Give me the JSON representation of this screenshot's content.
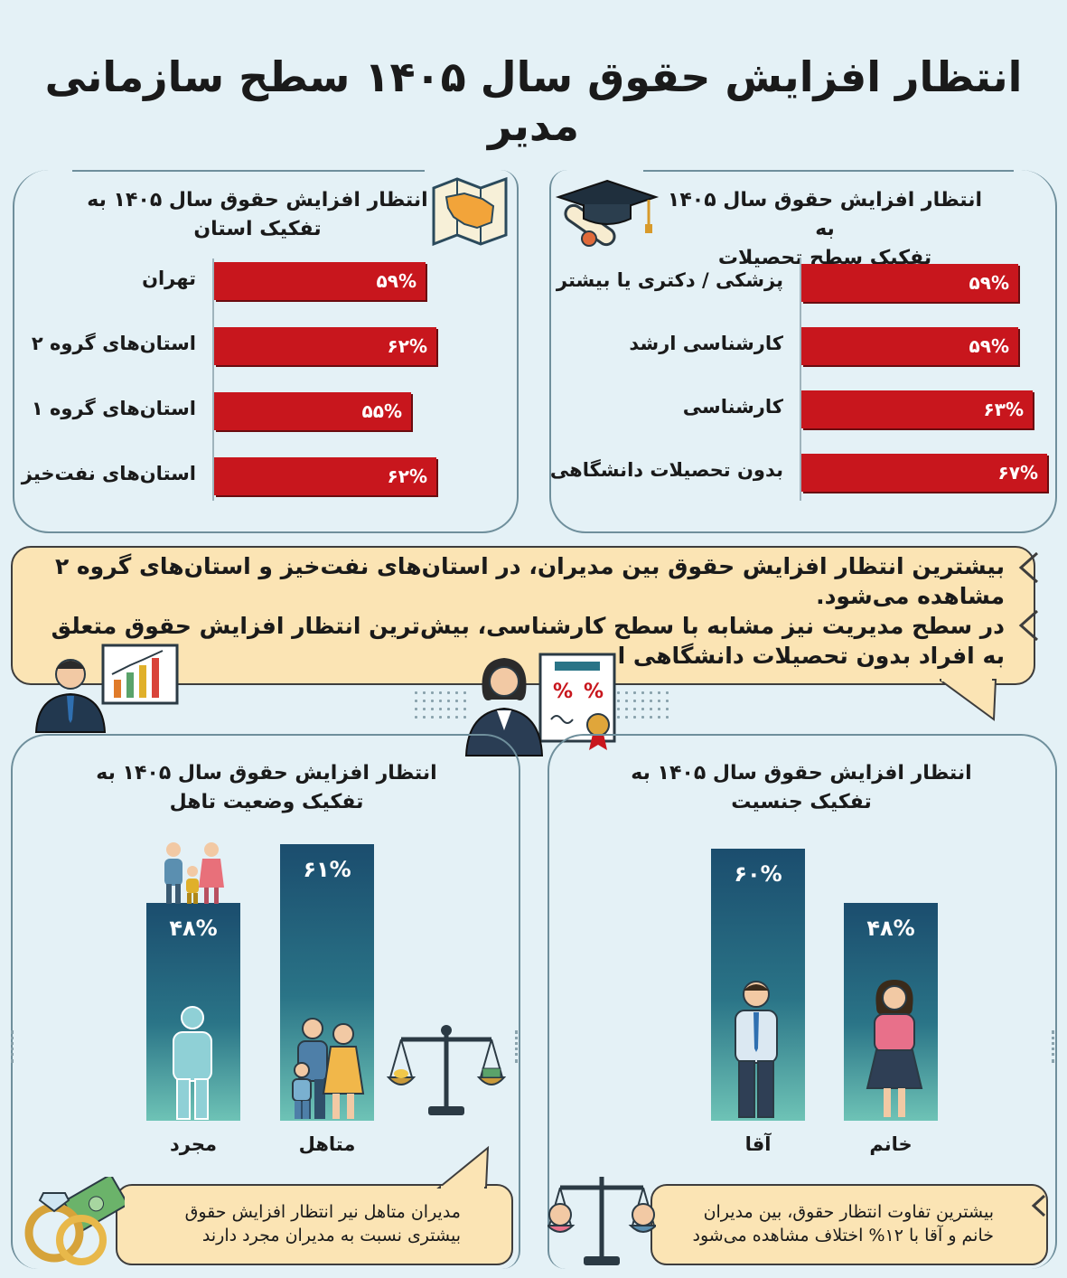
{
  "title": "انتظار افزایش حقوق سال ۱۴۰۵ سطح سازمانی مدیر",
  "panels": {
    "province": {
      "title_line1": "انتظار افزایش حقوق سال ۱۴۰۵ به",
      "title_line2": "تفکیک استان",
      "icon": "iran-map-icon"
    },
    "education": {
      "title_line1": "انتظار افزایش حقوق سال ۱۴۰۵ به",
      "title_line2": "تفکیک سطح تحصیلات",
      "icon": "graduation-cap-icon"
    },
    "marital": {
      "title_line1": "انتظار افزایش حقوق سال ۱۴۰۵ به",
      "title_line2": "تفکیک وضعیت تاهل"
    },
    "gender": {
      "title_line1": "انتظار افزایش حقوق سال ۱۴۰۵ به",
      "title_line2": "تفکیک جنسیت"
    }
  },
  "callout": {
    "para1": "بیشترین انتظار افزایش حقوق بین مدیران، در استان‌های نفت‌خیز و استان‌های گروه ۲ مشاهده می‌شود.",
    "para2": "در سطح مدیریت نیز مشابه با سطح کارشناسی، بیش‌ترین انتظار افزایش حقوق متعلق به افراد بدون تحصیلات دانشگاهی است."
  },
  "notes": {
    "marital": "مدیران متاهل نیر انتظار افزایش حقوق بیشتری نسبت به مدیران مجرد دارند",
    "gender": "بیشترین تفاوت انتظار حقوق، بین مدیران خانم و آقا با ۱۲% اختلاف مشاهده می‌شود"
  },
  "colors": {
    "red_bar": "#c8161d",
    "teal_bar_top": "#1b4d6e",
    "teal_bar_bottom": "#6ec3b6",
    "callout_bg": "#fbe4b4",
    "page_bg": "#e4f1f6"
  },
  "chart_data": [
    {
      "type": "bar",
      "orientation": "horizontal",
      "title": "انتظار افزایش حقوق سال ۱۴۰۵ به تفکیک استان",
      "categories": [
        "تهران",
        "استان‌های گروه ۲",
        "استان‌های گروه ۱",
        "استان‌های نفت‌خیز"
      ],
      "values": [
        59,
        62,
        55,
        62
      ],
      "labels": [
        "۵۹%",
        "۶۲%",
        "۵۵%",
        "۶۲%"
      ],
      "xlim": [
        0,
        100
      ]
    },
    {
      "type": "bar",
      "orientation": "horizontal",
      "title": "انتظار افزایش حقوق سال ۱۴۰۵ به تفکیک سطح تحصیلات",
      "categories": [
        "پزشکی / دکتری یا بیشتر",
        "کارشناسی ارشد",
        "کارشناسی",
        "بدون تحصیلات دانشگاهی"
      ],
      "values": [
        59,
        59,
        63,
        67
      ],
      "labels": [
        "۵۹%",
        "۵۹%",
        "۶۳%",
        "۶۷%"
      ],
      "xlim": [
        0,
        100
      ]
    },
    {
      "type": "bar",
      "orientation": "vertical",
      "title": "انتظار افزایش حقوق سال ۱۴۰۵ به تفکیک وضعیت تاهل",
      "categories": [
        "مجرد",
        "متاهل"
      ],
      "values": [
        48,
        61
      ],
      "labels": [
        "۴۸%",
        "۶۱%"
      ],
      "ylim": [
        0,
        70
      ]
    },
    {
      "type": "bar",
      "orientation": "vertical",
      "title": "انتظار افزایش حقوق سال ۱۴۰۵ به تفکیک جنسیت",
      "categories": [
        "آقا",
        "خانم"
      ],
      "values": [
        60,
        48
      ],
      "labels": [
        "۶۰%",
        "۴۸%"
      ],
      "ylim": [
        0,
        70
      ]
    }
  ]
}
